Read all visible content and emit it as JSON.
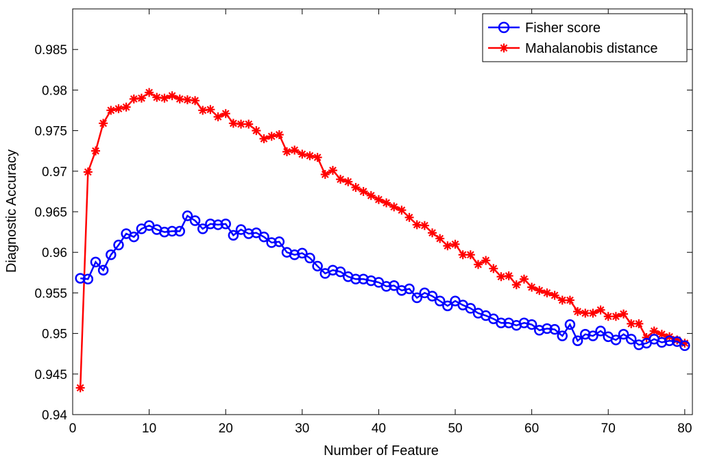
{
  "chart_data": {
    "type": "line",
    "xlabel": "Number of Feature",
    "ylabel": "Diagnostic Accuracy",
    "xlim": [
      0,
      81
    ],
    "ylim": [
      0.94,
      0.99
    ],
    "xticks": [
      0,
      10,
      20,
      30,
      40,
      50,
      60,
      70,
      80
    ],
    "yticks": [
      0.94,
      0.945,
      0.95,
      0.955,
      0.96,
      0.965,
      0.97,
      0.975,
      0.98,
      0.985
    ],
    "ytick_labels": [
      "0.94",
      "0.945",
      "0.95",
      "0.955",
      "0.96",
      "0.965",
      "0.97",
      "0.975",
      "0.98",
      "0.985"
    ],
    "grid": false,
    "legend_position": "top-right",
    "x": [
      1,
      2,
      3,
      4,
      5,
      6,
      7,
      8,
      9,
      10,
      11,
      12,
      13,
      14,
      15,
      16,
      17,
      18,
      19,
      20,
      21,
      22,
      23,
      24,
      25,
      26,
      27,
      28,
      29,
      30,
      31,
      32,
      33,
      34,
      35,
      36,
      37,
      38,
      39,
      40,
      41,
      42,
      43,
      44,
      45,
      46,
      47,
      48,
      49,
      50,
      51,
      52,
      53,
      54,
      55,
      56,
      57,
      58,
      59,
      60,
      61,
      62,
      63,
      64,
      65,
      66,
      67,
      68,
      69,
      70,
      71,
      72,
      73,
      74,
      75,
      76,
      77,
      78,
      79,
      80
    ],
    "series": [
      {
        "name": "Fisher score",
        "color": "#0000ff",
        "marker": "circle",
        "values": [
          0.9568,
          0.9567,
          0.9588,
          0.9578,
          0.9597,
          0.9609,
          0.9623,
          0.9619,
          0.9629,
          0.9633,
          0.9628,
          0.9625,
          0.9626,
          0.9626,
          0.9645,
          0.9639,
          0.9629,
          0.9635,
          0.9634,
          0.9635,
          0.9621,
          0.9628,
          0.9623,
          0.9624,
          0.9619,
          0.9612,
          0.9613,
          0.96,
          0.9597,
          0.9599,
          0.9593,
          0.9583,
          0.9574,
          0.9578,
          0.9576,
          0.957,
          0.9567,
          0.9567,
          0.9565,
          0.9563,
          0.9558,
          0.9559,
          0.9553,
          0.9555,
          0.9544,
          0.955,
          0.9546,
          0.954,
          0.9534,
          0.954,
          0.9535,
          0.9531,
          0.9525,
          0.9522,
          0.9518,
          0.9513,
          0.9513,
          0.951,
          0.9513,
          0.9511,
          0.9504,
          0.9506,
          0.9505,
          0.9497,
          0.9511,
          0.9491,
          0.9499,
          0.9497,
          0.9503,
          0.9496,
          0.9492,
          0.9499,
          0.9493,
          0.9486,
          0.9488,
          0.9493,
          0.9489,
          0.9491,
          0.949,
          0.9485
        ]
      },
      {
        "name": "Mahalanobis distance",
        "color": "#ff0000",
        "marker": "star",
        "values": [
          0.9433,
          0.9699,
          0.9725,
          0.9759,
          0.9775,
          0.9777,
          0.9779,
          0.9789,
          0.979,
          0.9797,
          0.9791,
          0.979,
          0.9793,
          0.9789,
          0.9788,
          0.9787,
          0.9775,
          0.9776,
          0.9767,
          0.9771,
          0.9759,
          0.9758,
          0.9758,
          0.975,
          0.974,
          0.9743,
          0.9745,
          0.9724,
          0.9726,
          0.9721,
          0.9719,
          0.9717,
          0.9696,
          0.9701,
          0.969,
          0.9687,
          0.968,
          0.9675,
          0.967,
          0.9665,
          0.9661,
          0.9656,
          0.9652,
          0.9643,
          0.9634,
          0.9633,
          0.9624,
          0.9617,
          0.9608,
          0.961,
          0.9597,
          0.9597,
          0.9585,
          0.959,
          0.958,
          0.957,
          0.9571,
          0.956,
          0.9567,
          0.9557,
          0.9553,
          0.955,
          0.9547,
          0.9541,
          0.9541,
          0.9527,
          0.9525,
          0.9525,
          0.9529,
          0.9521,
          0.9521,
          0.9524,
          0.9512,
          0.9512,
          0.9495,
          0.9503,
          0.9499,
          0.9496,
          0.9492,
          0.9488
        ]
      }
    ]
  }
}
